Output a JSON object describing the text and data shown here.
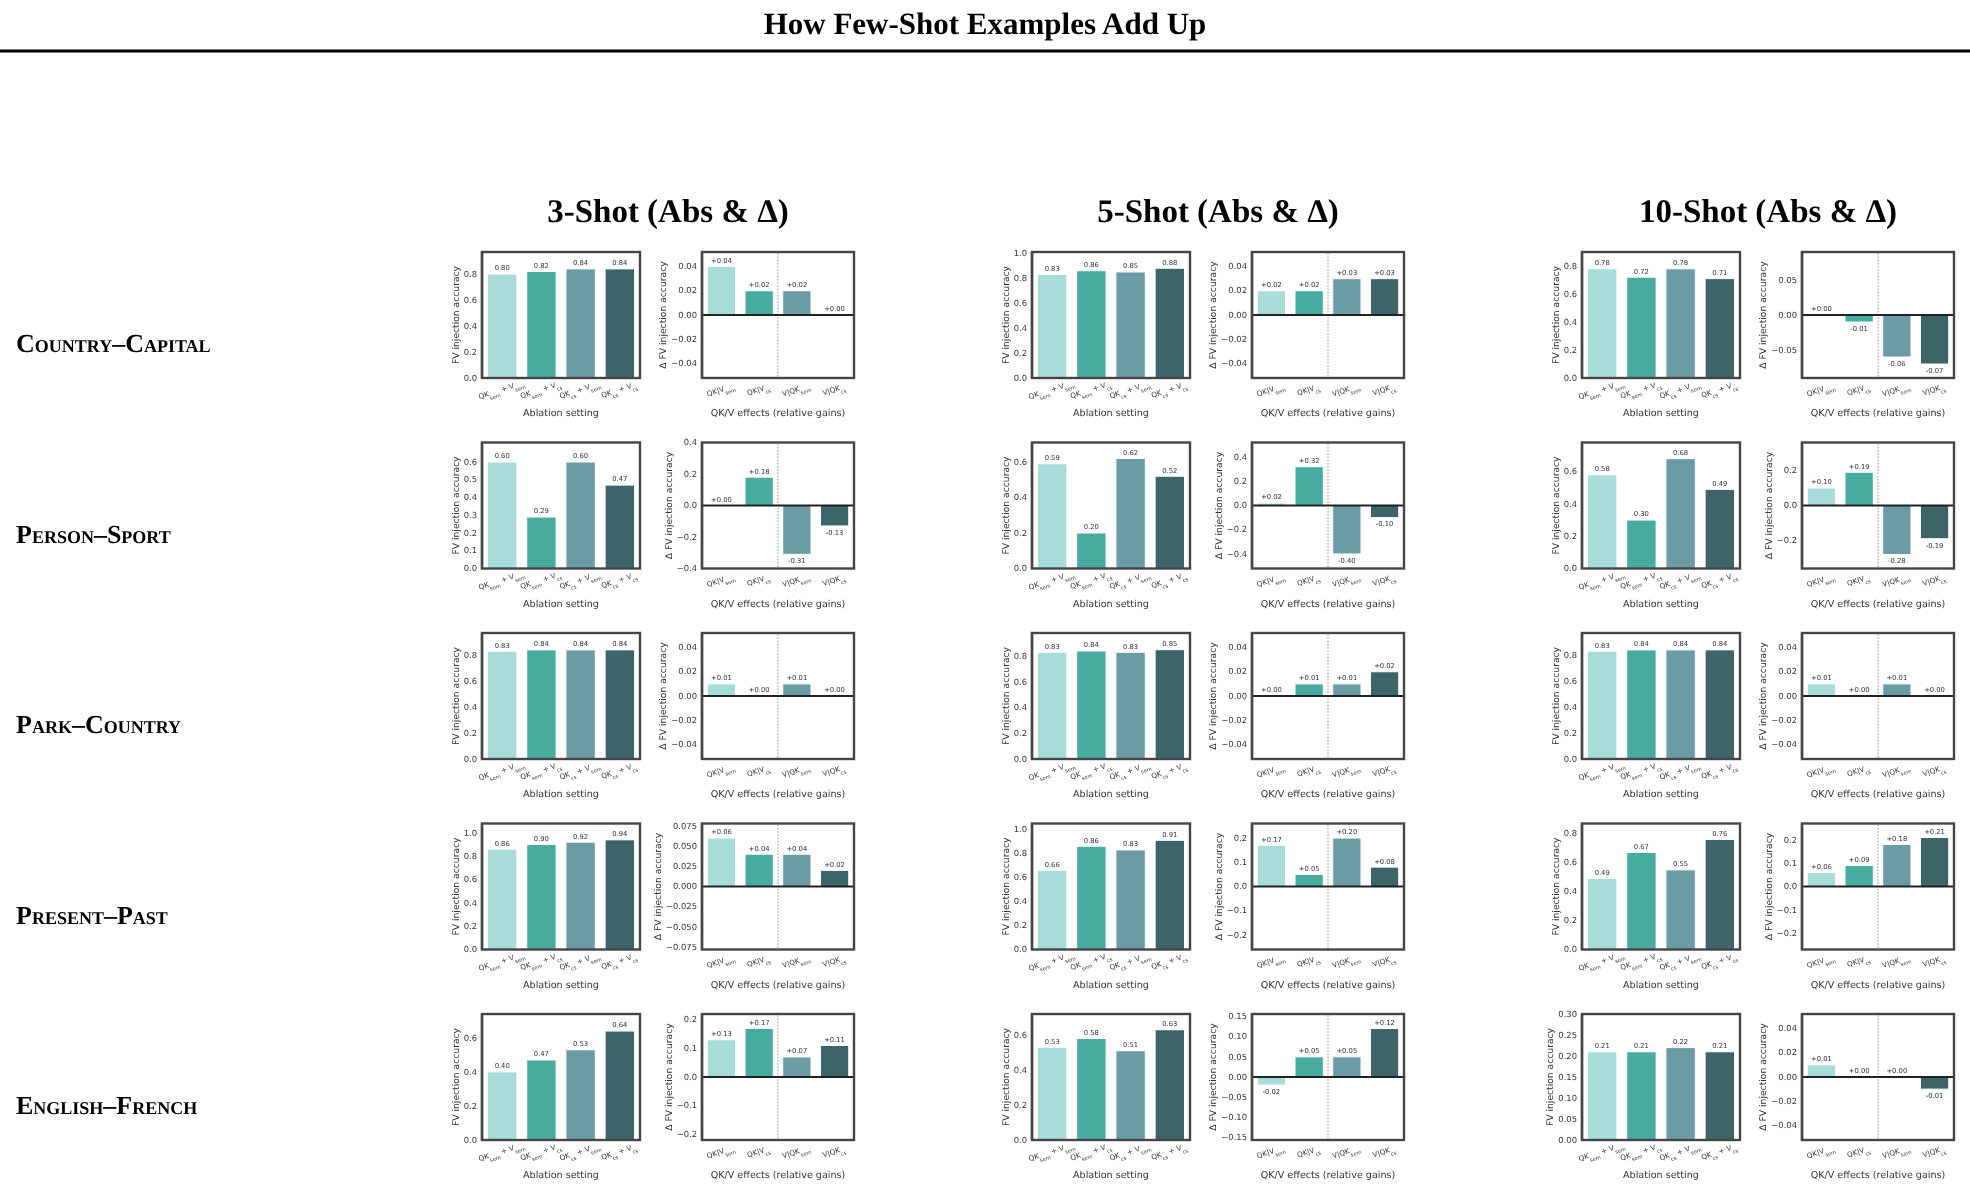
{
  "chart_data": [
    {
      "type": "other",
      "title": "How Few-Shot Examples Add Up",
      "annotations": [
        "3-Shot (Abs & Δ)",
        "5-Shot (Abs & Δ)",
        "10-Shot (Abs & Δ)",
        "Country–Capital",
        "Person–Sport",
        "Park–Country",
        "Present–Past",
        "English–French"
      ]
    },
    {
      "type": "bar",
      "xlabel": "Ablation setting",
      "ylabel": "FV injection accuracy",
      "categories": [
        "QK$_{sem}$ + V$_{sem}$",
        "QK$_{sem}$ + V$_{cs}$",
        "QK$_{cs}$ + V$_{sem}$",
        "QK$_{cs}$ + V$_{cs}$"
      ],
      "colors": [
        "#a8dcd8",
        "#48ab9f",
        "#6b9ba5",
        "#3d6468"
      ],
      "values": [
        0.8,
        0.82,
        0.84,
        0.84
      ],
      "value_labels": [
        "0.80",
        "0.82",
        "0.84",
        "0.84"
      ],
      "ylim": [
        0,
        0.97
      ],
      "yticks": [
        {
          "value": 0,
          "label": "0.0"
        },
        0.2,
        0.4,
        0.6,
        0.8
      ]
    },
    {
      "type": "bar",
      "xlabel": "QK/V effects (relative gains)",
      "ylabel": "Δ FV injection accuracy",
      "categories": [
        "QK|V$_{sem}$",
        "QK|V$_{cs}$",
        "V|QK$_{sem}$",
        "V|QK$_{cs}$"
      ],
      "colors": [
        "#a8dcd8",
        "#48ab9f",
        "#6b9ba5",
        "#3d6468"
      ],
      "values": [
        0.04,
        0.02,
        0.02,
        0.0
      ],
      "value_labels": [
        "+0.04",
        "+0.02",
        "+0.02",
        "+0.00"
      ],
      "ylim": [
        -0.052,
        0.052
      ],
      "yticks": [
        {
          "value": -0.04,
          "label": "−0.04"
        },
        {
          "value": -0.02,
          "label": "−0.02"
        },
        {
          "value": 0,
          "label": "0.00"
        },
        0.02,
        0.04
      ],
      "ref_lines": [
        {
          "axis": "y",
          "value": 0,
          "color": "#222222"
        }
      ]
    },
    {
      "type": "bar",
      "xlabel": "Ablation setting",
      "ylabel": "FV injection accuracy",
      "categories": [
        "QK$_{sem}$ + V$_{sem}$",
        "QK$_{sem}$ + V$_{cs}$",
        "QK$_{cs}$ + V$_{sem}$",
        "QK$_{cs}$ + V$_{cs}$"
      ],
      "colors": [
        "#a8dcd8",
        "#48ab9f",
        "#6b9ba5",
        "#3d6468"
      ],
      "values": [
        0.83,
        0.86,
        0.85,
        0.88
      ],
      "value_labels": [
        "0.83",
        "0.86",
        "0.85",
        "0.88"
      ],
      "ylim": [
        0,
        1.01
      ],
      "yticks": [
        {
          "value": 0,
          "label": "0.0"
        },
        0.2,
        0.4,
        0.6,
        0.8,
        {
          "value": 1,
          "label": "1.0"
        }
      ]
    },
    {
      "type": "bar",
      "xlabel": "QK/V effects (relative gains)",
      "ylabel": "Δ FV injection accuracy",
      "categories": [
        "QK|V$_{sem}$",
        "QK|V$_{cs}$",
        "V|QK$_{sem}$",
        "V|QK$_{cs}$"
      ],
      "colors": [
        "#a8dcd8",
        "#48ab9f",
        "#6b9ba5",
        "#3d6468"
      ],
      "values": [
        0.02,
        0.02,
        0.03,
        0.03
      ],
      "value_labels": [
        "+0.02",
        "+0.02",
        "+0.03",
        "+0.03"
      ],
      "ylim": [
        -0.052,
        0.052
      ],
      "yticks": [
        {
          "value": -0.04,
          "label": "−0.04"
        },
        {
          "value": -0.02,
          "label": "−0.02"
        },
        {
          "value": 0,
          "label": "0.00"
        },
        0.02,
        0.04
      ],
      "ref_lines": [
        {
          "axis": "y",
          "value": 0,
          "color": "#222222"
        }
      ]
    },
    {
      "type": "bar",
      "xlabel": "Ablation setting",
      "ylabel": "FV injection accuracy",
      "categories": [
        "QK$_{sem}$ + V$_{sem}$",
        "QK$_{sem}$ + V$_{cs}$",
        "QK$_{cs}$ + V$_{sem}$",
        "QK$_{cs}$ + V$_{cs}$"
      ],
      "colors": [
        "#a8dcd8",
        "#48ab9f",
        "#6b9ba5",
        "#3d6468"
      ],
      "values": [
        0.78,
        0.72,
        0.78,
        0.71
      ],
      "value_labels": [
        "0.78",
        "0.72",
        "0.78",
        "0.71"
      ],
      "ylim": [
        0,
        0.9
      ],
      "yticks": [
        {
          "value": 0,
          "label": "0.0"
        },
        0.2,
        0.4,
        0.6,
        0.8
      ]
    },
    {
      "type": "bar",
      "xlabel": "QK/V effects (relative gains)",
      "ylabel": "Δ FV injection accuracy",
      "categories": [
        "QK|V$_{sem}$",
        "QK|V$_{cs}$",
        "V|QK$_{sem}$",
        "V|QK$_{cs}$"
      ],
      "colors": [
        "#a8dcd8",
        "#48ab9f",
        "#6b9ba5",
        "#3d6468"
      ],
      "values": [
        0.0,
        -0.01,
        -0.06,
        -0.07
      ],
      "value_labels": [
        "+0.00",
        "-0.01",
        "-0.06",
        "-0.07"
      ],
      "ylim": [
        -0.09,
        0.09
      ],
      "yticks": [
        {
          "value": -0.05,
          "label": "−0.05"
        },
        {
          "value": 0,
          "label": "0.00"
        },
        0.05
      ],
      "ref_lines": [
        {
          "axis": "y",
          "value": 0,
          "color": "#222222"
        }
      ]
    },
    {
      "type": "bar",
      "xlabel": "Ablation setting",
      "ylabel": "FV injection accuracy",
      "categories": [
        "QK$_{sem}$ + V$_{sem}$",
        "QK$_{sem}$ + V$_{cs}$",
        "QK$_{cs}$ + V$_{sem}$",
        "QK$_{cs}$ + V$_{cs}$"
      ],
      "colors": [
        "#a8dcd8",
        "#48ab9f",
        "#6b9ba5",
        "#3d6468"
      ],
      "values": [
        0.6,
        0.29,
        0.6,
        0.47
      ],
      "value_labels": [
        "0.60",
        "0.29",
        "0.60",
        "0.47"
      ],
      "ylim": [
        0,
        0.71
      ],
      "yticks": [
        {
          "value": 0,
          "label": "0.0"
        },
        0.1,
        0.2,
        0.3,
        0.4,
        0.5,
        0.6
      ]
    },
    {
      "type": "bar",
      "xlabel": "QK/V effects (relative gains)",
      "ylabel": "Δ FV injection accuracy",
      "categories": [
        "QK|V$_{sem}$",
        "QK|V$_{cs}$",
        "V|QK$_{sem}$",
        "V|QK$_{cs}$"
      ],
      "colors": [
        "#a8dcd8",
        "#48ab9f",
        "#6b9ba5",
        "#3d6468"
      ],
      "values": [
        0.0,
        0.18,
        -0.31,
        -0.13
      ],
      "value_labels": [
        "+0.00",
        "+0.18",
        "-0.31",
        "-0.13"
      ],
      "ylim": [
        -0.4,
        0.4
      ],
      "yticks": [
        {
          "value": -0.4,
          "label": "−0.4"
        },
        {
          "value": -0.2,
          "label": "−0.2"
        },
        {
          "value": 0,
          "label": "0.0"
        },
        0.2,
        0.4
      ],
      "ref_lines": [
        {
          "axis": "y",
          "value": 0,
          "color": "#222222"
        }
      ]
    },
    {
      "type": "bar",
      "xlabel": "Ablation setting",
      "ylabel": "FV injection accuracy",
      "categories": [
        "QK$_{sem}$ + V$_{sem}$",
        "QK$_{sem}$ + V$_{cs}$",
        "QK$_{cs}$ + V$_{sem}$",
        "QK$_{cs}$ + V$_{cs}$"
      ],
      "colors": [
        "#a8dcd8",
        "#48ab9f",
        "#6b9ba5",
        "#3d6468"
      ],
      "values": [
        0.59,
        0.2,
        0.62,
        0.52
      ],
      "value_labels": [
        "0.59",
        "0.20",
        "0.62",
        "0.52"
      ],
      "ylim": [
        0,
        0.71
      ],
      "yticks": [
        {
          "value": 0,
          "label": "0.0"
        },
        0.2,
        0.4,
        0.6
      ]
    },
    {
      "type": "bar",
      "xlabel": "QK/V effects (relative gains)",
      "ylabel": "Δ FV injection accuracy",
      "categories": [
        "QK|V$_{sem}$",
        "QK|V$_{cs}$",
        "V|QK$_{sem}$",
        "V|QK$_{cs}$"
      ],
      "colors": [
        "#a8dcd8",
        "#48ab9f",
        "#6b9ba5",
        "#3d6468"
      ],
      "values": [
        0.02,
        0.32,
        -0.4,
        -0.1
      ],
      "value_labels": [
        "+0.02",
        "+0.32",
        "-0.40",
        "-0.10"
      ],
      "ylim": [
        -0.52,
        0.52
      ],
      "yticks": [
        {
          "value": -0.4,
          "label": "−0.4"
        },
        {
          "value": -0.2,
          "label": "−0.2"
        },
        {
          "value": 0,
          "label": "0.0"
        },
        0.2,
        0.4
      ],
      "ref_lines": [
        {
          "axis": "y",
          "value": 0,
          "color": "#222222"
        }
      ]
    },
    {
      "type": "bar",
      "xlabel": "Ablation setting",
      "ylabel": "FV injection accuracy",
      "categories": [
        "QK$_{sem}$ + V$_{sem}$",
        "QK$_{sem}$ + V$_{cs}$",
        "QK$_{cs}$ + V$_{sem}$",
        "QK$_{cs}$ + V$_{cs}$"
      ],
      "colors": [
        "#a8dcd8",
        "#48ab9f",
        "#6b9ba5",
        "#3d6468"
      ],
      "values": [
        0.58,
        0.3,
        0.68,
        0.49
      ],
      "value_labels": [
        "0.58",
        "0.30",
        "0.68",
        "0.49"
      ],
      "ylim": [
        0,
        0.78
      ],
      "yticks": [
        {
          "value": 0,
          "label": "0.0"
        },
        0.2,
        0.4,
        0.6
      ]
    },
    {
      "type": "bar",
      "xlabel": "QK/V effects (relative gains)",
      "ylabel": "Δ FV injection accuracy",
      "categories": [
        "QK|V$_{sem}$",
        "QK|V$_{cs}$",
        "V|QK$_{sem}$",
        "V|QK$_{cs}$"
      ],
      "colors": [
        "#a8dcd8",
        "#48ab9f",
        "#6b9ba5",
        "#3d6468"
      ],
      "values": [
        0.1,
        0.19,
        -0.28,
        -0.19
      ],
      "value_labels": [
        "+0.10",
        "+0.19",
        "-0.28",
        "-0.19"
      ],
      "ylim": [
        -0.36,
        0.36
      ],
      "yticks": [
        {
          "value": -0.2,
          "label": "−0.2"
        },
        {
          "value": 0,
          "label": "0.0"
        },
        0.2
      ],
      "ref_lines": [
        {
          "axis": "y",
          "value": 0,
          "color": "#222222"
        }
      ]
    },
    {
      "type": "bar",
      "xlabel": "Ablation setting",
      "ylabel": "FV injection accuracy",
      "categories": [
        "QK$_{sem}$ + V$_{sem}$",
        "QK$_{sem}$ + V$_{cs}$",
        "QK$_{cs}$ + V$_{sem}$",
        "QK$_{cs}$ + V$_{cs}$"
      ],
      "colors": [
        "#a8dcd8",
        "#48ab9f",
        "#6b9ba5",
        "#3d6468"
      ],
      "values": [
        0.83,
        0.84,
        0.84,
        0.84
      ],
      "value_labels": [
        "0.83",
        "0.84",
        "0.84",
        "0.84"
      ],
      "ylim": [
        0,
        0.97
      ],
      "yticks": [
        {
          "value": 0,
          "label": "0.0"
        },
        0.2,
        0.4,
        0.6,
        0.8
      ]
    },
    {
      "type": "bar",
      "xlabel": "QK/V effects (relative gains)",
      "ylabel": "Δ FV injection accuracy",
      "categories": [
        "QK|V$_{sem}$",
        "QK|V$_{cs}$",
        "V|QK$_{sem}$",
        "V|QK$_{cs}$"
      ],
      "colors": [
        "#a8dcd8",
        "#48ab9f",
        "#6b9ba5",
        "#3d6468"
      ],
      "values": [
        0.01,
        0.0,
        0.01,
        0.0
      ],
      "value_labels": [
        "+0.01",
        "+0.00",
        "+0.01",
        "+0.00"
      ],
      "ylim": [
        -0.052,
        0.052
      ],
      "yticks": [
        {
          "value": -0.04,
          "label": "−0.04"
        },
        {
          "value": -0.02,
          "label": "−0.02"
        },
        {
          "value": 0,
          "label": "0.00"
        },
        0.02,
        0.04
      ],
      "ref_lines": [
        {
          "axis": "y",
          "value": 0,
          "color": "#222222"
        }
      ]
    },
    {
      "type": "bar",
      "xlabel": "Ablation setting",
      "ylabel": "FV injection accuracy",
      "categories": [
        "QK$_{sem}$ + V$_{sem}$",
        "QK$_{sem}$ + V$_{cs}$",
        "QK$_{cs}$ + V$_{sem}$",
        "QK$_{cs}$ + V$_{cs}$"
      ],
      "colors": [
        "#a8dcd8",
        "#48ab9f",
        "#6b9ba5",
        "#3d6468"
      ],
      "values": [
        0.83,
        0.84,
        0.83,
        0.85
      ],
      "value_labels": [
        "0.83",
        "0.84",
        "0.83",
        "0.85"
      ],
      "ylim": [
        0,
        0.98
      ],
      "yticks": [
        {
          "value": 0,
          "label": "0.0"
        },
        0.2,
        0.4,
        0.6,
        0.8
      ]
    },
    {
      "type": "bar",
      "xlabel": "QK/V effects (relative gains)",
      "ylabel": "Δ FV injection accuracy",
      "categories": [
        "QK|V$_{sem}$",
        "QK|V$_{cs}$",
        "V|QK$_{sem}$",
        "V|QK$_{cs}$"
      ],
      "colors": [
        "#a8dcd8",
        "#48ab9f",
        "#6b9ba5",
        "#3d6468"
      ],
      "values": [
        0.0,
        0.01,
        0.01,
        0.02
      ],
      "value_labels": [
        "+0.00",
        "+0.01",
        "+0.01",
        "+0.02"
      ],
      "ylim": [
        -0.052,
        0.052
      ],
      "yticks": [
        {
          "value": -0.04,
          "label": "−0.04"
        },
        {
          "value": -0.02,
          "label": "−0.02"
        },
        {
          "value": 0,
          "label": "0.00"
        },
        0.02,
        0.04
      ],
      "ref_lines": [
        {
          "axis": "y",
          "value": 0,
          "color": "#222222"
        }
      ]
    },
    {
      "type": "bar",
      "xlabel": "Ablation setting",
      "ylabel": "FV injection accuracy",
      "categories": [
        "QK$_{sem}$ + V$_{sem}$",
        "QK$_{sem}$ + V$_{cs}$",
        "QK$_{cs}$ + V$_{sem}$",
        "QK$_{cs}$ + V$_{cs}$"
      ],
      "colors": [
        "#a8dcd8",
        "#48ab9f",
        "#6b9ba5",
        "#3d6468"
      ],
      "values": [
        0.83,
        0.84,
        0.84,
        0.84
      ],
      "value_labels": [
        "0.83",
        "0.84",
        "0.84",
        "0.84"
      ],
      "ylim": [
        0,
        0.97
      ],
      "yticks": [
        {
          "value": 0,
          "label": "0.0"
        },
        0.2,
        0.4,
        0.6,
        0.8
      ]
    },
    {
      "type": "bar",
      "xlabel": "QK/V effects (relative gains)",
      "ylabel": "Δ FV injection accuracy",
      "categories": [
        "QK|V$_{sem}$",
        "QK|V$_{cs}$",
        "V|QK$_{sem}$",
        "V|QK$_{cs}$"
      ],
      "colors": [
        "#a8dcd8",
        "#48ab9f",
        "#6b9ba5",
        "#3d6468"
      ],
      "values": [
        0.01,
        0.0,
        0.01,
        0.0
      ],
      "value_labels": [
        "+0.01",
        "+0.00",
        "+0.01",
        "+0.00"
      ],
      "ylim": [
        -0.052,
        0.052
      ],
      "yticks": [
        {
          "value": -0.04,
          "label": "−0.04"
        },
        {
          "value": -0.02,
          "label": "−0.02"
        },
        {
          "value": 0,
          "label": "0.00"
        },
        0.02,
        0.04
      ],
      "ref_lines": [
        {
          "axis": "y",
          "value": 0,
          "color": "#222222"
        }
      ]
    },
    {
      "type": "bar",
      "xlabel": "Ablation setting",
      "ylabel": "FV injection accuracy",
      "categories": [
        "QK$_{sem}$ + V$_{sem}$",
        "QK$_{sem}$ + V$_{cs}$",
        "QK$_{cs}$ + V$_{sem}$",
        "QK$_{cs}$ + V$_{cs}$"
      ],
      "colors": [
        "#a8dcd8",
        "#48ab9f",
        "#6b9ba5",
        "#3d6468"
      ],
      "values": [
        0.86,
        0.9,
        0.92,
        0.94
      ],
      "value_labels": [
        "0.86",
        "0.90",
        "0.92",
        "0.94"
      ],
      "ylim": [
        0,
        1.08
      ],
      "yticks": [
        {
          "value": 0,
          "label": "0.0"
        },
        0.2,
        0.4,
        0.6,
        0.8,
        {
          "value": 1,
          "label": "1.0"
        }
      ]
    },
    {
      "type": "bar",
      "xlabel": "QK/V effects (relative gains)",
      "ylabel": "Δ FV injection accuracy",
      "categories": [
        "QK|V$_{sem}$",
        "QK|V$_{cs}$",
        "V|QK$_{sem}$",
        "V|QK$_{cs}$"
      ],
      "colors": [
        "#a8dcd8",
        "#48ab9f",
        "#6b9ba5",
        "#3d6468"
      ],
      "values": [
        0.06,
        0.04,
        0.04,
        0.02
      ],
      "value_labels": [
        "+0.06",
        "+0.04",
        "+0.04",
        "+0.02"
      ],
      "ylim": [
        -0.078,
        0.078
      ],
      "yticks": [
        {
          "value": -0.075,
          "label": "−0.075"
        },
        {
          "value": -0.05,
          "label": "−0.050"
        },
        {
          "value": -0.025,
          "label": "−0.025"
        },
        {
          "value": 0,
          "label": "0.000"
        },
        0.025,
        {
          "value": 0.05,
          "label": "0.050"
        },
        0.075
      ],
      "ref_lines": [
        {
          "axis": "y",
          "value": 0,
          "color": "#222222"
        }
      ]
    },
    {
      "type": "bar",
      "xlabel": "Ablation setting",
      "ylabel": "FV injection accuracy",
      "categories": [
        "QK$_{sem}$ + V$_{sem}$",
        "QK$_{sem}$ + V$_{cs}$",
        "QK$_{cs}$ + V$_{sem}$",
        "QK$_{cs}$ + V$_{cs}$"
      ],
      "colors": [
        "#a8dcd8",
        "#48ab9f",
        "#6b9ba5",
        "#3d6468"
      ],
      "values": [
        0.66,
        0.86,
        0.83,
        0.91
      ],
      "value_labels": [
        "0.66",
        "0.86",
        "0.83",
        "0.91"
      ],
      "ylim": [
        0,
        1.05
      ],
      "yticks": [
        {
          "value": 0,
          "label": "0.0"
        },
        0.2,
        0.4,
        0.6,
        0.8,
        {
          "value": 1,
          "label": "1.0"
        }
      ]
    },
    {
      "type": "bar",
      "xlabel": "QK/V effects (relative gains)",
      "ylabel": "Δ FV injection accuracy",
      "categories": [
        "QK|V$_{sem}$",
        "QK|V$_{cs}$",
        "V|QK$_{sem}$",
        "V|QK$_{cs}$"
      ],
      "colors": [
        "#a8dcd8",
        "#48ab9f",
        "#6b9ba5",
        "#3d6468"
      ],
      "values": [
        0.17,
        0.05,
        0.2,
        0.08
      ],
      "value_labels": [
        "+0.17",
        "+0.05",
        "+0.20",
        "+0.08"
      ],
      "ylim": [
        -0.26,
        0.26
      ],
      "yticks": [
        {
          "value": -0.2,
          "label": "−0.2"
        },
        {
          "value": -0.1,
          "label": "−0.1"
        },
        {
          "value": 0,
          "label": "0.0"
        },
        0.1,
        0.2
      ],
      "ref_lines": [
        {
          "axis": "y",
          "value": 0,
          "color": "#222222"
        }
      ]
    },
    {
      "type": "bar",
      "xlabel": "Ablation setting",
      "ylabel": "FV injection accuracy",
      "categories": [
        "QK$_{sem}$ + V$_{sem}$",
        "QK$_{sem}$ + V$_{cs}$",
        "QK$_{cs}$ + V$_{sem}$",
        "QK$_{cs}$ + V$_{cs}$"
      ],
      "colors": [
        "#a8dcd8",
        "#48ab9f",
        "#6b9ba5",
        "#3d6468"
      ],
      "values": [
        0.49,
        0.67,
        0.55,
        0.76
      ],
      "value_labels": [
        "0.49",
        "0.67",
        "0.55",
        "0.76"
      ],
      "ylim": [
        0,
        0.87
      ],
      "yticks": [
        {
          "value": 0,
          "label": "0.0"
        },
        0.2,
        0.4,
        0.6,
        0.8
      ]
    },
    {
      "type": "bar",
      "xlabel": "QK/V effects (relative gains)",
      "ylabel": "Δ FV injection accuracy",
      "categories": [
        "QK|V$_{sem}$",
        "QK|V$_{cs}$",
        "V|QK$_{sem}$",
        "V|QK$_{cs}$"
      ],
      "colors": [
        "#a8dcd8",
        "#48ab9f",
        "#6b9ba5",
        "#3d6468"
      ],
      "values": [
        0.06,
        0.09,
        0.18,
        0.21
      ],
      "value_labels": [
        "+0.06",
        "+0.09",
        "+0.18",
        "+0.21"
      ],
      "ylim": [
        -0.27,
        0.27
      ],
      "yticks": [
        {
          "value": -0.2,
          "label": "−0.2"
        },
        {
          "value": -0.1,
          "label": "−0.1"
        },
        {
          "value": 0,
          "label": "0.0"
        },
        0.1,
        0.2
      ],
      "ref_lines": [
        {
          "axis": "y",
          "value": 0,
          "color": "#222222"
        }
      ]
    },
    {
      "type": "bar",
      "xlabel": "Ablation setting",
      "ylabel": "FV injection accuracy",
      "categories": [
        "QK$_{sem}$ + V$_{sem}$",
        "QK$_{sem}$ + V$_{cs}$",
        "QK$_{cs}$ + V$_{sem}$",
        "QK$_{cs}$ + V$_{cs}$"
      ],
      "colors": [
        "#a8dcd8",
        "#48ab9f",
        "#6b9ba5",
        "#3d6468"
      ],
      "values": [
        0.4,
        0.47,
        0.53,
        0.64
      ],
      "value_labels": [
        "0.40",
        "0.47",
        "0.53",
        "0.64"
      ],
      "ylim": [
        0,
        0.74
      ],
      "yticks": [
        {
          "value": 0,
          "label": "0.0"
        },
        0.2,
        0.4,
        0.6
      ]
    },
    {
      "type": "bar",
      "xlabel": "QK/V effects (relative gains)",
      "ylabel": "Δ FV injection accuracy",
      "categories": [
        "QK|V$_{sem}$",
        "QK|V$_{cs}$",
        "V|QK$_{sem}$",
        "V|QK$_{cs}$"
      ],
      "colors": [
        "#a8dcd8",
        "#48ab9f",
        "#6b9ba5",
        "#3d6468"
      ],
      "values": [
        0.13,
        0.17,
        0.07,
        0.11
      ],
      "value_labels": [
        "+0.13",
        "+0.17",
        "+0.07",
        "+0.11"
      ],
      "ylim": [
        -0.22,
        0.22
      ],
      "yticks": [
        {
          "value": -0.2,
          "label": "−0.2"
        },
        {
          "value": -0.1,
          "label": "−0.1"
        },
        {
          "value": 0,
          "label": "0.0"
        },
        0.1,
        0.2
      ],
      "ref_lines": [
        {
          "axis": "y",
          "value": 0,
          "color": "#222222"
        }
      ]
    },
    {
      "type": "bar",
      "xlabel": "Ablation setting",
      "ylabel": "FV injection accuracy",
      "categories": [
        "QK$_{sem}$ + V$_{sem}$",
        "QK$_{sem}$ + V$_{cs}$",
        "QK$_{cs}$ + V$_{sem}$",
        "QK$_{cs}$ + V$_{cs}$"
      ],
      "colors": [
        "#a8dcd8",
        "#48ab9f",
        "#6b9ba5",
        "#3d6468"
      ],
      "values": [
        0.53,
        0.58,
        0.51,
        0.63
      ],
      "value_labels": [
        "0.53",
        "0.58",
        "0.51",
        "0.63"
      ],
      "ylim": [
        0,
        0.72
      ],
      "yticks": [
        {
          "value": 0,
          "label": "0.0"
        },
        0.2,
        0.4,
        0.6
      ]
    },
    {
      "type": "bar",
      "xlabel": "QK/V effects (relative gains)",
      "ylabel": "Δ FV injection accuracy",
      "categories": [
        "QK|V$_{sem}$",
        "QK|V$_{cs}$",
        "V|QK$_{sem}$",
        "V|QK$_{cs}$"
      ],
      "colors": [
        "#a8dcd8",
        "#48ab9f",
        "#6b9ba5",
        "#3d6468"
      ],
      "values": [
        -0.02,
        0.05,
        0.05,
        0.12
      ],
      "value_labels": [
        "-0.02",
        "+0.05",
        "+0.05",
        "+0.12"
      ],
      "ylim": [
        -0.156,
        0.156
      ],
      "yticks": [
        {
          "value": -0.15,
          "label": "−0.15"
        },
        {
          "value": -0.1,
          "label": "−0.10"
        },
        {
          "value": -0.05,
          "label": "−0.05"
        },
        {
          "value": 0,
          "label": "0.00"
        },
        0.05,
        {
          "value": 0.1,
          "label": "0.10"
        },
        0.15
      ],
      "ref_lines": [
        {
          "axis": "y",
          "value": 0,
          "color": "#222222"
        }
      ]
    },
    {
      "type": "bar",
      "xlabel": "Ablation setting",
      "ylabel": "FV injection accuracy",
      "categories": [
        "QK$_{sem}$ + V$_{sem}$",
        "QK$_{sem}$ + V$_{cs}$",
        "QK$_{cs}$ + V$_{sem}$",
        "QK$_{cs}$ + V$_{cs}$"
      ],
      "colors": [
        "#a8dcd8",
        "#48ab9f",
        "#6b9ba5",
        "#3d6468"
      ],
      "values": [
        0.21,
        0.21,
        0.22,
        0.21
      ],
      "value_labels": [
        "0.21",
        "0.21",
        "0.22",
        "0.21"
      ],
      "ylim": [
        0,
        0.3
      ],
      "yticks": [
        {
          "value": 0,
          "label": "0.00"
        },
        0.05,
        {
          "value": 0.1,
          "label": "0.10"
        },
        0.15,
        {
          "value": 0.2,
          "label": "0.20"
        },
        0.25,
        {
          "value": 0.3,
          "label": "0.30"
        }
      ]
    },
    {
      "type": "bar",
      "xlabel": "QK/V effects (relative gains)",
      "ylabel": "Δ FV injection accuracy",
      "categories": [
        "QK|V$_{sem}$",
        "QK|V$_{cs}$",
        "V|QK$_{sem}$",
        "V|QK$_{cs}$"
      ],
      "colors": [
        "#a8dcd8",
        "#48ab9f",
        "#6b9ba5",
        "#3d6468"
      ],
      "values": [
        0.01,
        0.0,
        0.0,
        -0.01
      ],
      "value_labels": [
        "+0.01",
        "+0.00",
        "+0.00",
        "-0.01"
      ],
      "ylim": [
        -0.052,
        0.052
      ],
      "yticks": [
        {
          "value": -0.04,
          "label": "−0.04"
        },
        {
          "value": -0.02,
          "label": "−0.02"
        },
        {
          "value": 0,
          "label": "0.00"
        },
        0.02,
        0.04
      ],
      "ref_lines": [
        {
          "axis": "y",
          "value": 0,
          "color": "#222222"
        }
      ]
    }
  ]
}
